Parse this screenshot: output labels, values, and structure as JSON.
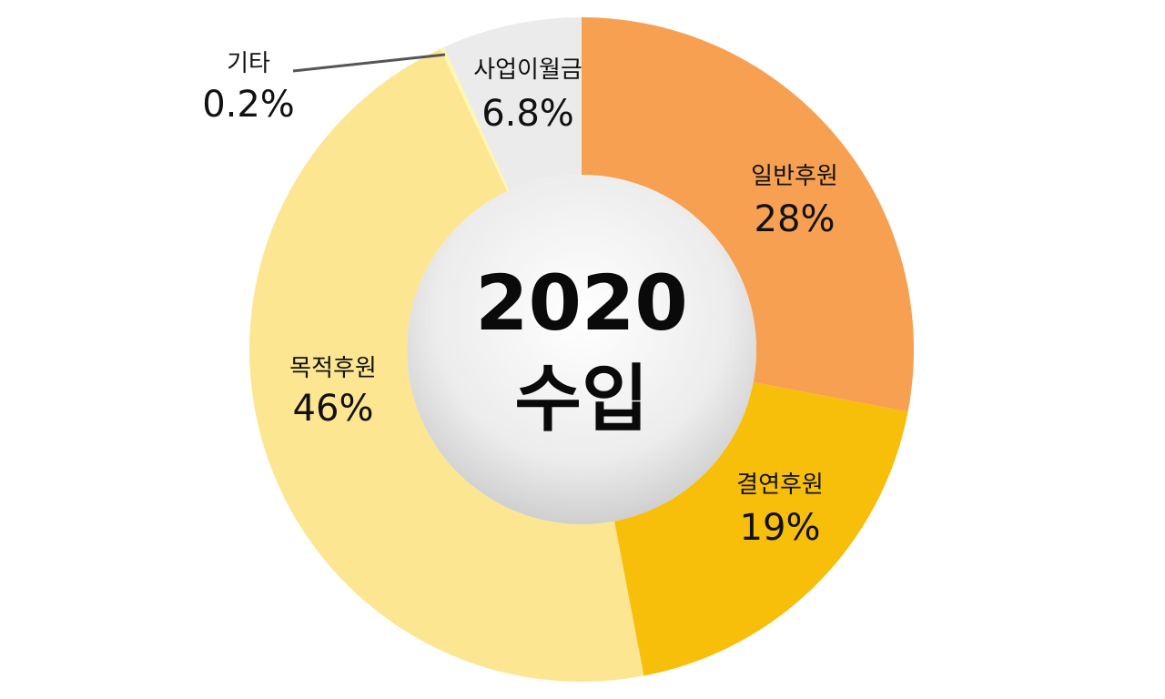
{
  "chart_data": {
    "type": "pie",
    "style": "donut",
    "center_title": "2020",
    "center_subtitle": "수입",
    "categories": [
      "일반후원",
      "결연후원",
      "목적후원",
      "기타",
      "사업이월금"
    ],
    "values": [
      28,
      19,
      46,
      0.2,
      6.8
    ],
    "value_labels": [
      "28%",
      "19%",
      "46%",
      "0.2%",
      "6.8%"
    ],
    "unit": "%",
    "colors": [
      "#f8a051",
      "#f7be0a",
      "#fde692",
      "#fdf8b0",
      "#ebebeb"
    ]
  }
}
